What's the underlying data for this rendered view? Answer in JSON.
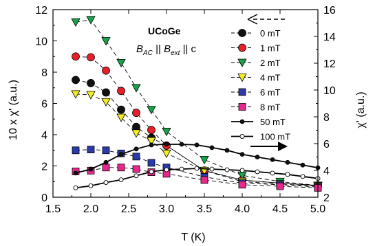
{
  "chart_data": {
    "type": "line",
    "title": "UCoGe",
    "annotation": {
      "B1": "B",
      "sub1": "AC",
      "sep": " || ",
      "B2": "B",
      "sub2": "ext",
      "tail": " || c"
    },
    "xlabel": "T (K)",
    "ylabel_left": "10 x χ' (a.u.)",
    "ylabel_right": "χ' (a.u.)",
    "xlim": [
      1.5,
      5.0
    ],
    "ylim_left": [
      0,
      12
    ],
    "ylim_right": [
      2,
      16
    ],
    "x_ticks": [
      "1.5",
      "2.0",
      "2.5",
      "3.0",
      "3.5",
      "4.0",
      "4.5",
      "5.0"
    ],
    "y_ticks_left": [
      "0",
      "2",
      "4",
      "6",
      "8",
      "10",
      "12"
    ],
    "y_ticks_right": [
      "2",
      "4",
      "6",
      "8",
      "10",
      "12",
      "14",
      "16"
    ],
    "colors": {
      "black": "#111111",
      "red": "#e8202a",
      "green": "#1aa34a",
      "yellow": "#f2ec20",
      "blue": "#2a3aa8",
      "magenta": "#e8288c"
    },
    "series": [
      {
        "name": "0 mT",
        "axis": "left",
        "marker": "circle",
        "color": "#111111",
        "dashed": true,
        "x": [
          1.8,
          2.0,
          2.2,
          2.4,
          2.6,
          2.8,
          3.0,
          3.5,
          4.0,
          4.5,
          5.0
        ],
        "y": [
          7.5,
          7.3,
          6.7,
          5.6,
          4.5,
          3.8,
          3.3,
          1.7,
          1.1,
          0.9,
          0.75
        ]
      },
      {
        "name": "1 mT",
        "axis": "left",
        "marker": "circle",
        "color": "#e8202a",
        "dashed": true,
        "x": [
          1.8,
          2.0,
          2.2,
          2.4,
          2.6,
          2.8,
          3.0,
          3.5,
          4.0,
          4.5,
          5.0
        ],
        "y": [
          9.0,
          8.95,
          8.1,
          6.8,
          5.4,
          4.3,
          3.3,
          1.7,
          1.1,
          0.9,
          0.75
        ]
      },
      {
        "name": "2 mT",
        "axis": "left",
        "marker": "triangle-down",
        "color": "#1aa34a",
        "dashed": true,
        "x": [
          1.8,
          2.0,
          2.2,
          2.4,
          2.6,
          2.8,
          3.0,
          3.5,
          4.0,
          4.5,
          5.0
        ],
        "y": [
          11.2,
          11.35,
          10.0,
          8.6,
          7.0,
          5.6,
          4.2,
          2.4,
          1.4,
          1.0,
          0.75
        ]
      },
      {
        "name": "4 mT",
        "axis": "left",
        "marker": "triangle-down",
        "color": "#f2ec20",
        "dashed": true,
        "x": [
          1.8,
          2.0,
          2.2,
          2.4,
          2.6,
          2.8,
          3.0,
          3.5,
          4.0,
          4.5,
          5.0
        ],
        "y": [
          6.6,
          6.55,
          6.1,
          5.1,
          4.1,
          3.6,
          2.8,
          1.7,
          1.0,
          0.85,
          0.7
        ]
      },
      {
        "name": "6 mT",
        "axis": "left",
        "marker": "square",
        "color": "#2a3aa8",
        "dashed": true,
        "x": [
          1.8,
          2.0,
          2.2,
          2.4,
          2.6,
          2.8,
          3.0,
          3.5,
          4.0,
          4.5,
          5.0
        ],
        "y": [
          3.0,
          3.05,
          3.0,
          2.8,
          2.6,
          2.2,
          1.9,
          1.3,
          0.9,
          0.8,
          0.65
        ]
      },
      {
        "name": "8 mT",
        "axis": "left",
        "marker": "square",
        "color": "#e8288c",
        "dashed": true,
        "x": [
          1.8,
          2.0,
          2.2,
          2.4,
          2.6,
          2.8,
          3.0,
          3.5,
          4.0,
          4.5,
          5.0
        ],
        "y": [
          1.65,
          1.7,
          1.9,
          1.9,
          1.8,
          1.6,
          1.5,
          1.1,
          0.8,
          0.7,
          0.6
        ]
      },
      {
        "name": "50 mT",
        "axis": "right",
        "marker": "circle-small",
        "color": "#111111",
        "dashed": false,
        "x": [
          1.8,
          2.0,
          2.2,
          2.4,
          2.6,
          2.8,
          3.0,
          3.2,
          3.4,
          3.6,
          3.8,
          4.0,
          4.2,
          4.4,
          4.6,
          4.8,
          5.0
        ],
        "y": [
          3.8,
          4.1,
          4.6,
          5.2,
          5.6,
          5.9,
          5.95,
          5.95,
          5.9,
          5.7,
          5.5,
          5.2,
          5.0,
          4.8,
          4.6,
          4.4,
          4.2
        ]
      },
      {
        "name": "100 mT",
        "axis": "right",
        "marker": "circle-open",
        "color": "#111111",
        "dashed": false,
        "x": [
          1.8,
          2.0,
          2.2,
          2.4,
          2.6,
          2.8,
          3.0,
          3.2,
          3.4,
          3.6,
          3.8,
          4.0,
          4.2,
          4.4,
          4.6,
          4.8,
          5.0
        ],
        "y": [
          2.7,
          2.85,
          3.1,
          3.3,
          3.6,
          3.9,
          4.05,
          4.1,
          4.15,
          4.1,
          4.05,
          4.0,
          3.9,
          3.8,
          3.7,
          3.55,
          3.4
        ]
      }
    ],
    "legend_placement": "top-right",
    "grid": false
  }
}
